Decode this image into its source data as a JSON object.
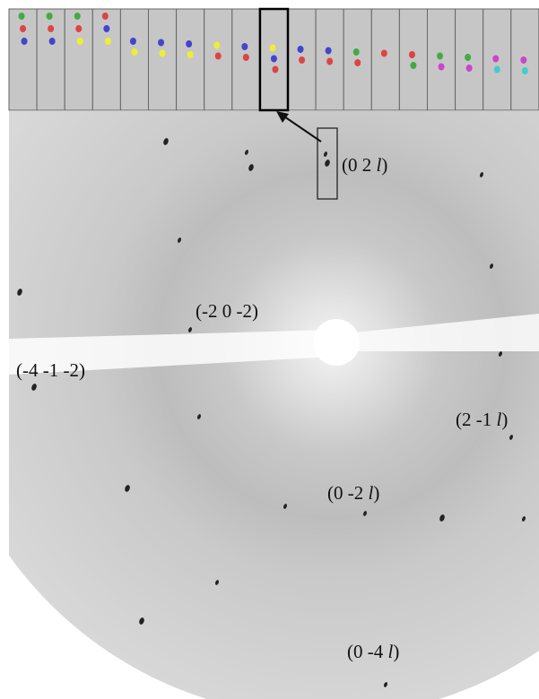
{
  "labels": [
    "(0 2 l)",
    "(-2 0 -2)",
    "(-4 -1 -2)",
    "(2 -1 l)",
    "(0 -2 l)",
    "(0 -4 l)"
  ]
}
